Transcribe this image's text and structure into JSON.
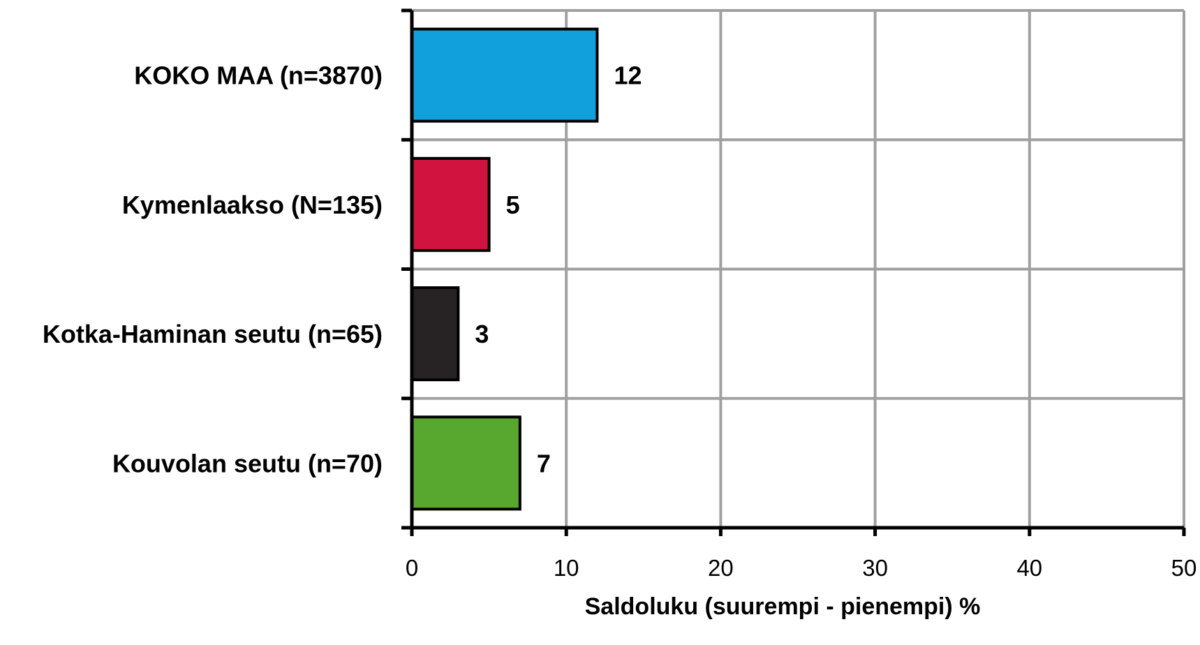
{
  "chart_data": {
    "type": "bar",
    "orientation": "horizontal",
    "categories": [
      "KOKO MAA (n=3870)",
      "Kymenlaakso (N=135)",
      "Kotka-Haminan seutu (n=65)",
      "Kouvolan seutu (n=70)"
    ],
    "values": [
      12,
      5,
      3,
      7
    ],
    "bar_colors": [
      "#12a0dc",
      "#d1133f",
      "#272324",
      "#58a82f"
    ],
    "xlabel": "Saldoluku (suurempi - pienempi) %",
    "ylabel": "",
    "title": "",
    "xlim": [
      0,
      50
    ],
    "xticks": [
      "0",
      "10",
      "20",
      "30",
      "40",
      "50"
    ],
    "grid": true,
    "legend": "none",
    "grid_color": "#a0a0a0",
    "axis_color": "#000000"
  }
}
